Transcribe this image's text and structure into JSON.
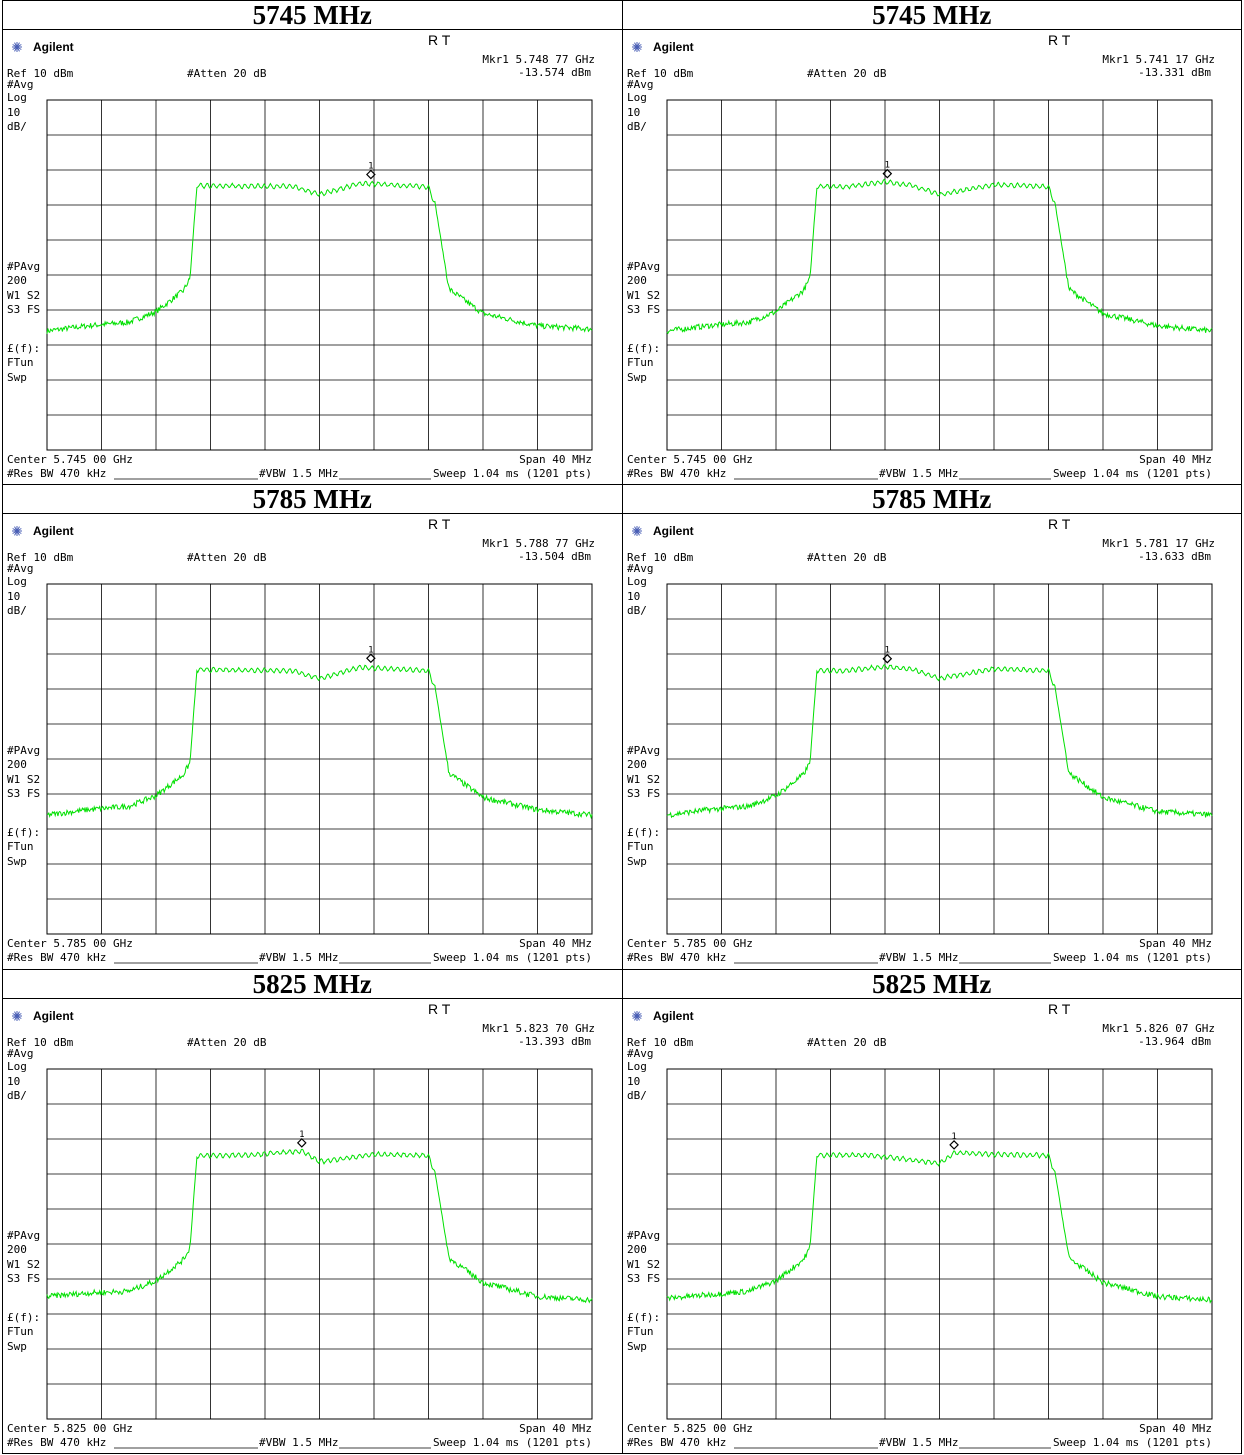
{
  "panels": [
    {
      "title": "5745 MHz",
      "brand": "Agilent",
      "rt": "R T",
      "mkr_freq": "Mkr1  5.748 77 GHz",
      "mkr_amp": "-13.574 dBm",
      "ref": "Ref 10 dBm",
      "atten": "#Atten 20 dB",
      "side_top": [
        "#Avg",
        "Log",
        "10",
        "dB/"
      ],
      "side_mid": [
        "#PAvg",
        "200",
        "W1  S2",
        "S3  FS"
      ],
      "side_bot": [
        "£(f):",
        "FTun",
        "Swp"
      ],
      "center": "Center 5.745 00 GHz",
      "span": "Span 40 MHz",
      "res_bw": "#Res BW 470 kHz",
      "vbw": "#VBW 1.5 MHz",
      "sweep": "Sweep 1.04 ms (1201 pts)",
      "marker_label": "1"
    },
    {
      "title": "5745 MHz",
      "brand": "Agilent",
      "rt": "R T",
      "mkr_freq": "Mkr1  5.741 17 GHz",
      "mkr_amp": "-13.331 dBm",
      "ref": "Ref 10 dBm",
      "atten": "#Atten 20 dB",
      "side_top": [
        "#Avg",
        "Log",
        "10",
        "dB/"
      ],
      "side_mid": [
        "#PAvg",
        "200",
        "W1  S2",
        "S3  FS"
      ],
      "side_bot": [
        "£(f):",
        "FTun",
        "Swp"
      ],
      "center": "Center 5.745 00 GHz",
      "span": "Span 40 MHz",
      "res_bw": "#Res BW 470 kHz",
      "vbw": "#VBW 1.5 MHz",
      "sweep": "Sweep 1.04 ms (1201 pts)",
      "marker_label": "1"
    },
    {
      "title": "5785 MHz",
      "brand": "Agilent",
      "rt": "R T",
      "mkr_freq": "Mkr1  5.788 77 GHz",
      "mkr_amp": "-13.504 dBm",
      "ref": "Ref 10 dBm",
      "atten": "#Atten 20 dB",
      "side_top": [
        "#Avg",
        "Log",
        "10",
        "dB/"
      ],
      "side_mid": [
        "#PAvg",
        "200",
        "W1  S2",
        "S3  FS"
      ],
      "side_bot": [
        "£(f):",
        "FTun",
        "Swp"
      ],
      "center": "Center 5.785 00 GHz",
      "span": "Span 40 MHz",
      "res_bw": "#Res BW 470 kHz",
      "vbw": "#VBW 1.5 MHz",
      "sweep": "Sweep 1.04 ms (1201 pts)",
      "marker_label": "1"
    },
    {
      "title": "5785 MHz",
      "brand": "Agilent",
      "rt": "R T",
      "mkr_freq": "Mkr1  5.781 17 GHz",
      "mkr_amp": "-13.633 dBm",
      "ref": "Ref 10 dBm",
      "atten": "#Atten 20 dB",
      "side_top": [
        "#Avg",
        "Log",
        "10",
        "dB/"
      ],
      "side_mid": [
        "#PAvg",
        "200",
        "W1  S2",
        "S3  FS"
      ],
      "side_bot": [
        "£(f):",
        "FTun",
        "Swp"
      ],
      "center": "Center 5.785 00 GHz",
      "span": "Span 40 MHz",
      "res_bw": "#Res BW 470 kHz",
      "vbw": "#VBW 1.5 MHz",
      "sweep": "Sweep 1.04 ms (1201 pts)",
      "marker_label": "1"
    },
    {
      "title": "5825 MHz",
      "brand": "Agilent",
      "rt": "R T",
      "mkr_freq": "Mkr1  5.823 70 GHz",
      "mkr_amp": "-13.393 dBm",
      "ref": "Ref 10 dBm",
      "atten": "#Atten 20 dB",
      "side_top": [
        "#Avg",
        "Log",
        "10",
        "dB/"
      ],
      "side_mid": [
        "#PAvg",
        "200",
        "W1  S2",
        "S3  FS"
      ],
      "side_bot": [
        "£(f):",
        "FTun",
        "Swp"
      ],
      "center": "Center 5.825 00 GHz",
      "span": "Span 40 MHz",
      "res_bw": "#Res BW 470 kHz",
      "vbw": "#VBW 1.5 MHz",
      "sweep": "Sweep 1.04 ms (1201 pts)",
      "marker_label": "1"
    },
    {
      "title": "5825 MHz",
      "brand": "Agilent",
      "rt": "R T",
      "mkr_freq": "Mkr1  5.826 07 GHz",
      "mkr_amp": "-13.964 dBm",
      "ref": "Ref 10 dBm",
      "atten": "#Atten 20 dB",
      "side_top": [
        "#Avg",
        "Log",
        "10",
        "dB/"
      ],
      "side_mid": [
        "#PAvg",
        "200",
        "W1  S2",
        "S3  FS"
      ],
      "side_bot": [
        "£(f):",
        "FTun",
        "Swp"
      ],
      "center": "Center 5.825 00 GHz",
      "span": "Span 40 MHz",
      "res_bw": "#Res BW 470 kHz",
      "vbw": "#VBW 1.5 MHz",
      "sweep": "Sweep 1.04 ms (1201 pts)",
      "marker_label": "1"
    }
  ],
  "colors": {
    "trace": "#00e000",
    "grid": "#000000",
    "background": "#ffffff"
  },
  "chart_data": [
    {
      "type": "line",
      "center_ghz": 5.745,
      "span_mhz": 40,
      "ref_dbm": 10,
      "db_per_div": 10,
      "grid": true,
      "x_unit": "GHz",
      "y_unit": "dBm",
      "x": [
        5.725,
        5.728,
        5.731,
        5.733,
        5.735,
        5.7355,
        5.736,
        5.74,
        5.743,
        5.745,
        5.748,
        5.752,
        5.753,
        5.7535,
        5.7545,
        5.757,
        5.761,
        5.765
      ],
      "y": [
        -56,
        -54.5,
        -53.5,
        -50.5,
        -44.5,
        -41,
        -14.5,
        -14.6,
        -14.7,
        -17,
        -13.8,
        -14.6,
        -14.8,
        -20,
        -44,
        -51,
        -54.5,
        -55.5
      ],
      "marker": {
        "x": 5.74877,
        "y": -13.574
      }
    },
    {
      "type": "line",
      "center_ghz": 5.745,
      "span_mhz": 40,
      "ref_dbm": 10,
      "db_per_div": 10,
      "grid": true,
      "x_unit": "GHz",
      "y_unit": "dBm",
      "x": [
        5.725,
        5.728,
        5.731,
        5.733,
        5.735,
        5.7355,
        5.736,
        5.738,
        5.741,
        5.743,
        5.745,
        5.749,
        5.752,
        5.753,
        5.7535,
        5.7545,
        5.757,
        5.761,
        5.765
      ],
      "y": [
        -56,
        -54.5,
        -53.5,
        -50.5,
        -44.5,
        -41,
        -14.6,
        -14.8,
        -13.4,
        -14.4,
        -17,
        -14.2,
        -14.6,
        -14.8,
        -20,
        -44,
        -51,
        -54.5,
        -56
      ],
      "marker": {
        "x": 5.74117,
        "y": -13.331
      }
    },
    {
      "type": "line",
      "center_ghz": 5.785,
      "span_mhz": 40,
      "ref_dbm": 10,
      "db_per_div": 10,
      "grid": true,
      "x_unit": "GHz",
      "y_unit": "dBm",
      "x": [
        5.765,
        5.768,
        5.771,
        5.773,
        5.775,
        5.7755,
        5.776,
        5.78,
        5.783,
        5.785,
        5.788,
        5.792,
        5.793,
        5.7935,
        5.7945,
        5.797,
        5.801,
        5.805
      ],
      "y": [
        -56,
        -54.5,
        -53.5,
        -50.5,
        -44.5,
        -41,
        -14.5,
        -14.6,
        -14.8,
        -17,
        -13.8,
        -14.6,
        -14.8,
        -20,
        -44,
        -51,
        -54.5,
        -56
      ],
      "marker": {
        "x": 5.78877,
        "y": -13.504
      }
    },
    {
      "type": "line",
      "center_ghz": 5.785,
      "span_mhz": 40,
      "ref_dbm": 10,
      "db_per_div": 10,
      "grid": true,
      "x_unit": "GHz",
      "y_unit": "dBm",
      "x": [
        5.765,
        5.768,
        5.771,
        5.773,
        5.775,
        5.7755,
        5.776,
        5.778,
        5.781,
        5.783,
        5.785,
        5.789,
        5.792,
        5.793,
        5.7935,
        5.7945,
        5.797,
        5.801,
        5.805
      ],
      "y": [
        -56,
        -54.5,
        -53.5,
        -50.5,
        -44.5,
        -41,
        -14.6,
        -14.8,
        -13.6,
        -14.4,
        -17,
        -14.2,
        -14.6,
        -14.8,
        -20,
        -44,
        -51,
        -55,
        -56
      ],
      "marker": {
        "x": 5.78117,
        "y": -13.633
      }
    },
    {
      "type": "line",
      "center_ghz": 5.825,
      "span_mhz": 40,
      "ref_dbm": 10,
      "db_per_div": 10,
      "grid": true,
      "x_unit": "GHz",
      "y_unit": "dBm",
      "x": [
        5.805,
        5.808,
        5.811,
        5.813,
        5.815,
        5.8155,
        5.816,
        5.82,
        5.8237,
        5.825,
        5.829,
        5.832,
        5.833,
        5.8335,
        5.8345,
        5.837,
        5.841,
        5.845
      ],
      "y": [
        -55,
        -54,
        -53.5,
        -50.5,
        -44.5,
        -41,
        -14.8,
        -14.6,
        -13.4,
        -16.5,
        -14.4,
        -14.6,
        -14.8,
        -20,
        -44,
        -51,
        -55,
        -56
      ],
      "marker": {
        "x": 5.8237,
        "y": -13.393
      }
    },
    {
      "type": "line",
      "center_ghz": 5.825,
      "span_mhz": 40,
      "ref_dbm": 10,
      "db_per_div": 10,
      "grid": true,
      "x_unit": "GHz",
      "y_unit": "dBm",
      "x": [
        5.805,
        5.808,
        5.811,
        5.813,
        5.815,
        5.8155,
        5.816,
        5.82,
        5.825,
        5.8261,
        5.829,
        5.832,
        5.833,
        5.8335,
        5.8345,
        5.837,
        5.841,
        5.845
      ],
      "y": [
        -55.5,
        -54.5,
        -53.5,
        -50.5,
        -44.5,
        -41,
        -14.6,
        -14.6,
        -17,
        -13.9,
        -14.4,
        -14.6,
        -14.8,
        -20,
        -44,
        -51,
        -55,
        -56
      ],
      "marker": {
        "x": 5.82607,
        "y": -13.964
      }
    }
  ]
}
